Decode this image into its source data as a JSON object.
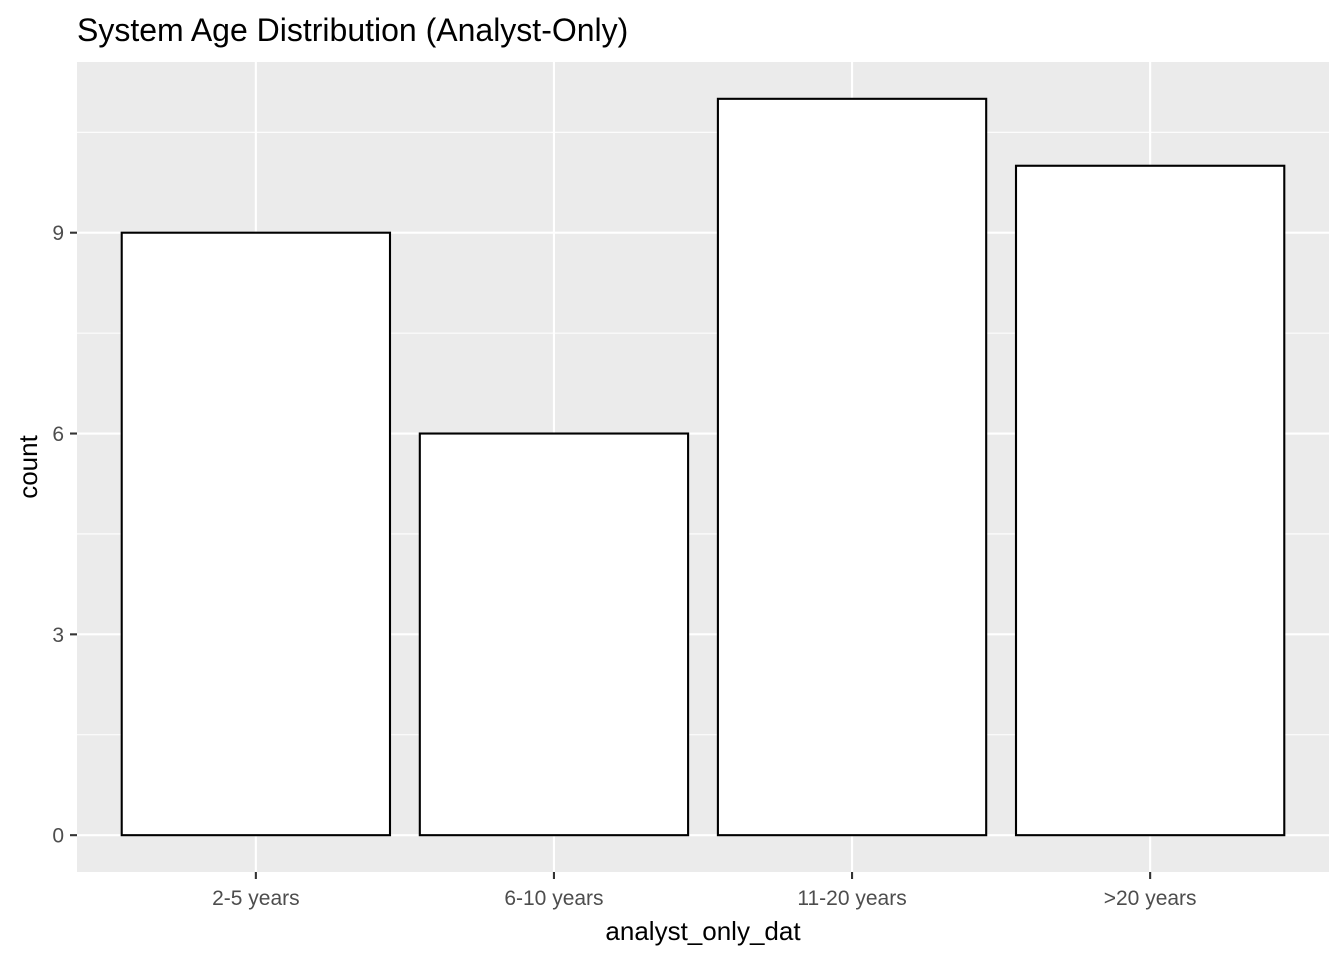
{
  "chart_data": {
    "type": "bar",
    "title": "System Age Distribution (Analyst-Only)",
    "xlabel": "analyst_only_dat",
    "ylabel": "count",
    "categories": [
      "2-5 years",
      "6-10 years",
      "11-20 years",
      ">20 years"
    ],
    "values": [
      9,
      6,
      11,
      10
    ],
    "ylim": [
      -0.55,
      11.55
    ],
    "yticks": [
      0,
      3,
      6,
      9
    ],
    "ytick_labels": [
      "0",
      "3",
      "6",
      "9"
    ],
    "grid": true,
    "legend": "none",
    "colors": {
      "panel": "#ebebeb",
      "grid": "#ffffff",
      "bar_fill": "#ffffff",
      "bar_outline": "#000000",
      "tick_label": "#4d4d4d",
      "text": "#000000"
    }
  }
}
